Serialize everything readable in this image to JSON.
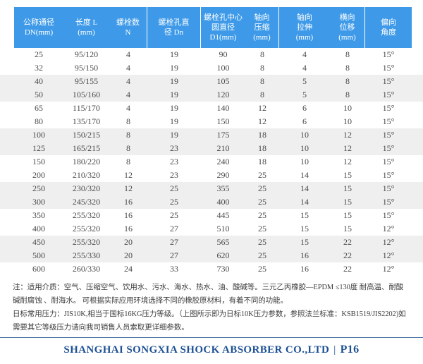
{
  "table": {
    "columns": [
      {
        "lines": [
          "公称通径",
          "DN(mm)"
        ]
      },
      {
        "lines": [
          "长度 L",
          "(mm)"
        ]
      },
      {
        "lines": [
          "螺栓数",
          "N"
        ]
      },
      {
        "lines": [
          "螺栓孔直",
          "径 Dn"
        ]
      },
      {
        "lines": [
          "螺栓孔中心",
          "圆直径",
          "D1(mm)"
        ]
      },
      {
        "lines": [
          "轴向",
          "压缩",
          "(mm)"
        ]
      },
      {
        "lines": [
          "轴向",
          "拉伸",
          "(mm)"
        ]
      },
      {
        "lines": [
          "横向",
          "位移",
          "(mm)"
        ]
      },
      {
        "lines": [
          "偏向",
          "角度"
        ]
      }
    ],
    "rows": [
      [
        "25",
        "95/120",
        "4",
        "19",
        "90",
        "8",
        "4",
        "8",
        "15°"
      ],
      [
        "32",
        "95/150",
        "4",
        "19",
        "100",
        "8",
        "4",
        "8",
        "15°"
      ],
      [
        "40",
        "95/155",
        "4",
        "19",
        "105",
        "8",
        "5",
        "8",
        "15°"
      ],
      [
        "50",
        "105/160",
        "4",
        "19",
        "120",
        "8",
        "5",
        "8",
        "15°"
      ],
      [
        "65",
        "115/170",
        "4",
        "19",
        "140",
        "12",
        "6",
        "10",
        "15°"
      ],
      [
        "80",
        "135/170",
        "8",
        "19",
        "150",
        "12",
        "6",
        "10",
        "15°"
      ],
      [
        "100",
        "150/215",
        "8",
        "19",
        "175",
        "18",
        "10",
        "12",
        "15°"
      ],
      [
        "125",
        "165/215",
        "8",
        "23",
        "210",
        "18",
        "10",
        "12",
        "15°"
      ],
      [
        "150",
        "180/220",
        "8",
        "23",
        "240",
        "18",
        "10",
        "12",
        "15°"
      ],
      [
        "200",
        "210/320",
        "12",
        "23",
        "290",
        "25",
        "14",
        "15",
        "15°"
      ],
      [
        "250",
        "230/320",
        "12",
        "25",
        "355",
        "25",
        "14",
        "15",
        "15°"
      ],
      [
        "300",
        "245/320",
        "16",
        "25",
        "400",
        "25",
        "14",
        "15",
        "15°"
      ],
      [
        "350",
        "255/320",
        "16",
        "25",
        "445",
        "25",
        "15",
        "15",
        "15°"
      ],
      [
        "400",
        "255/320",
        "16",
        "27",
        "510",
        "25",
        "15",
        "15",
        "12°"
      ],
      [
        "450",
        "255/320",
        "20",
        "27",
        "565",
        "25",
        "15",
        "22",
        "12°"
      ],
      [
        "500",
        "255/330",
        "20",
        "27",
        "620",
        "25",
        "16",
        "22",
        "12°"
      ],
      [
        "600",
        "260/330",
        "24",
        "33",
        "730",
        "25",
        "16",
        "22",
        "12°"
      ]
    ]
  },
  "notes": {
    "lines": [
      "注：适用介质：空气、压缩空气、饮用水、污水、海水、热水、油、酸碱等。三元乙丙橡胶—EPDM ≤130度 耐高温、耐酸",
      "碱耐腐蚀 、耐海水。 可根据实际应用环境选择不同的橡胶原材料，有着不同的功能。",
      "日标常用压力：JIS10K,相当于国标16KG压力等级。（上图所示即为日标10K压力参数，参照法兰标准：KSB1519/JIS2202)如",
      "需要其它等级压力请向我司销售人员索取更详细参数。"
    ]
  },
  "footer": {
    "company": "SHANGHAI SONGXIA SHOCK ABSORBER CO.,LTD",
    "separator": "|",
    "page": "P16"
  },
  "colors": {
    "header_bg": "#3E9AE8",
    "header_text": "#FFFFFF",
    "row_shaded_bg": "#EFEFEF",
    "body_text": "#4A4A4A",
    "note_text": "#3D3D3D",
    "footer_text": "#1C4F94",
    "rule": "#46729F"
  }
}
